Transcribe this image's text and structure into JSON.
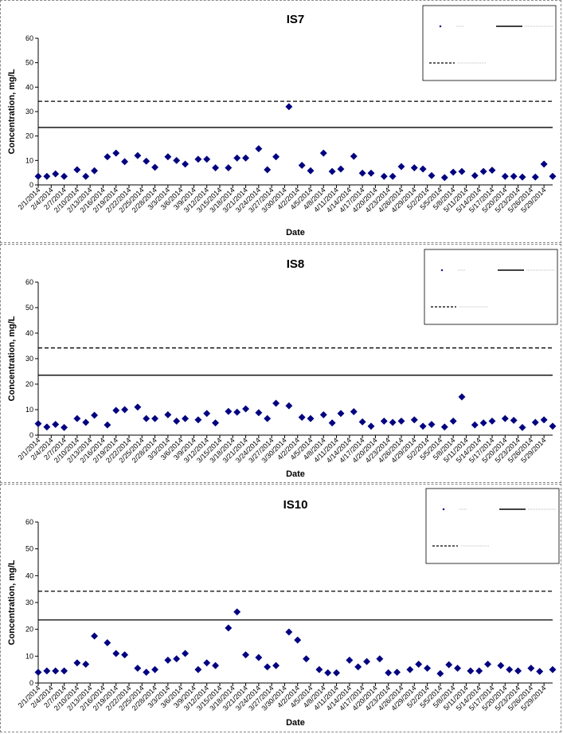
{
  "chart_data": [
    {
      "type": "scatter",
      "title": "IS7",
      "xlabel": "Date",
      "ylabel": "Concentration, mg/L",
      "ylim": [
        0,
        60
      ],
      "yticks": [
        0,
        10,
        20,
        30,
        40,
        50,
        60
      ],
      "xlim": [
        "2014-02-01",
        "2014-05-31"
      ],
      "xtick_labels": [
        "2/1/2014",
        "2/4/2014",
        "2/7/2014",
        "2/10/2014",
        "2/13/2014",
        "2/16/2014",
        "2/19/2014",
        "2/22/2014",
        "2/25/2014",
        "2/28/2014",
        "3/3/2014",
        "3/6/2014",
        "3/9/2014",
        "3/12/2014",
        "3/15/2014",
        "3/18/2014",
        "3/21/2014",
        "3/24/2014",
        "3/27/2014",
        "3/30/2014",
        "4/2/2014",
        "4/5/2014",
        "4/8/2014",
        "4/11/2014",
        "4/14/2014",
        "4/17/2014",
        "4/20/2014",
        "4/23/2014",
        "4/26/2014",
        "4/29/2014",
        "5/2/2014",
        "5/5/2014",
        "5/8/2014",
        "5/11/2014",
        "5/14/2014",
        "5/17/2014",
        "5/20/2014",
        "5/23/2014",
        "5/26/2014",
        "5/29/2014"
      ],
      "hlines": [
        {
          "y": 34.2,
          "style": "dashed"
        },
        {
          "y": 23.5,
          "style": "solid"
        }
      ],
      "legend_position": "top-right",
      "marker_color": "#000080",
      "points": [
        [
          "2014-02-01",
          3.5
        ],
        [
          "2014-02-03",
          3.5
        ],
        [
          "2014-02-05",
          4.5
        ],
        [
          "2014-02-07",
          3.5
        ],
        [
          "2014-02-10",
          6.2
        ],
        [
          "2014-02-12",
          3.5
        ],
        [
          "2014-02-14",
          5.8
        ],
        [
          "2014-02-17",
          11.5
        ],
        [
          "2014-02-19",
          13
        ],
        [
          "2014-02-21",
          9.5
        ],
        [
          "2014-02-24",
          12
        ],
        [
          "2014-02-26",
          9.7
        ],
        [
          "2014-02-28",
          7.2
        ],
        [
          "2014-03-03",
          11.5
        ],
        [
          "2014-03-05",
          10
        ],
        [
          "2014-03-07",
          8.5
        ],
        [
          "2014-03-10",
          10.5
        ],
        [
          "2014-03-12",
          10.5
        ],
        [
          "2014-03-14",
          7
        ],
        [
          "2014-03-17",
          7
        ],
        [
          "2014-03-19",
          11
        ],
        [
          "2014-03-21",
          11
        ],
        [
          "2014-03-24",
          14.8
        ],
        [
          "2014-03-26",
          6.2
        ],
        [
          "2014-03-28",
          11.5
        ],
        [
          "2014-03-31",
          32
        ],
        [
          "2014-04-03",
          8
        ],
        [
          "2014-04-05",
          5.8
        ],
        [
          "2014-04-08",
          13
        ],
        [
          "2014-04-10",
          5.5
        ],
        [
          "2014-04-12",
          6.5
        ],
        [
          "2014-04-15",
          11.7
        ],
        [
          "2014-04-17",
          4.8
        ],
        [
          "2014-04-19",
          4.8
        ],
        [
          "2014-04-22",
          3.5
        ],
        [
          "2014-04-24",
          3.5
        ],
        [
          "2014-04-26",
          7.5
        ],
        [
          "2014-04-29",
          7
        ],
        [
          "2014-05-01",
          6.5
        ],
        [
          "2014-05-03",
          3.8
        ],
        [
          "2014-05-06",
          3
        ],
        [
          "2014-05-08",
          5.2
        ],
        [
          "2014-05-10",
          5.5
        ],
        [
          "2014-05-13",
          3.8
        ],
        [
          "2014-05-15",
          5.5
        ],
        [
          "2014-05-17",
          6
        ],
        [
          "2014-05-20",
          3.5
        ],
        [
          "2014-05-22",
          3.5
        ],
        [
          "2014-05-24",
          3.2
        ],
        [
          "2014-05-27",
          3.2
        ],
        [
          "2014-05-29",
          8.5
        ],
        [
          "2014-05-31",
          3.5
        ]
      ]
    },
    {
      "type": "scatter",
      "title": "IS8",
      "xlabel": "Date",
      "ylabel": "Concentration, mg/L",
      "ylim": [
        0,
        60
      ],
      "yticks": [
        0,
        10,
        20,
        30,
        40,
        50,
        60
      ],
      "xlim": [
        "2014-02-01",
        "2014-05-31"
      ],
      "xtick_labels": [
        "2/1/2014",
        "2/4/2014",
        "2/7/2014",
        "2/10/2014",
        "2/13/2014",
        "2/16/2014",
        "2/19/2014",
        "2/22/2014",
        "2/25/2014",
        "2/28/2014",
        "3/3/2014",
        "3/6/2014",
        "3/9/2014",
        "3/12/2014",
        "3/15/2014",
        "3/18/2014",
        "3/21/2014",
        "3/24/2014",
        "3/27/2014",
        "3/30/2014",
        "4/2/2014",
        "4/5/2014",
        "4/8/2014",
        "4/11/2014",
        "4/14/2014",
        "4/17/2014",
        "4/20/2014",
        "4/23/2014",
        "4/26/2014",
        "4/29/2014",
        "5/2/2014",
        "5/5/2014",
        "5/8/2014",
        "5/11/2014",
        "5/14/2014",
        "5/17/2014",
        "5/20/2014",
        "5/23/2014",
        "5/26/2014",
        "5/29/2014"
      ],
      "hlines": [
        {
          "y": 34.2,
          "style": "dashed"
        },
        {
          "y": 23.5,
          "style": "solid"
        }
      ],
      "legend_position": "top-right",
      "marker_color": "#000080",
      "points": [
        [
          "2014-02-01",
          4.5
        ],
        [
          "2014-02-03",
          3.2
        ],
        [
          "2014-02-05",
          4.2
        ],
        [
          "2014-02-07",
          3
        ],
        [
          "2014-02-10",
          6.5
        ],
        [
          "2014-02-12",
          5
        ],
        [
          "2014-02-14",
          7.8
        ],
        [
          "2014-02-17",
          4
        ],
        [
          "2014-02-19",
          9.7
        ],
        [
          "2014-02-21",
          10
        ],
        [
          "2014-02-24",
          11
        ],
        [
          "2014-02-26",
          6.5
        ],
        [
          "2014-02-28",
          6.5
        ],
        [
          "2014-03-03",
          8
        ],
        [
          "2014-03-05",
          5.5
        ],
        [
          "2014-03-07",
          6.5
        ],
        [
          "2014-03-10",
          6
        ],
        [
          "2014-03-12",
          8.5
        ],
        [
          "2014-03-14",
          4.8
        ],
        [
          "2014-03-17",
          9.3
        ],
        [
          "2014-03-19",
          9
        ],
        [
          "2014-03-21",
          10.3
        ],
        [
          "2014-03-24",
          8.8
        ],
        [
          "2014-03-26",
          6.5
        ],
        [
          "2014-03-28",
          12.5
        ],
        [
          "2014-03-31",
          11.5
        ],
        [
          "2014-04-03",
          7
        ],
        [
          "2014-04-05",
          6.5
        ],
        [
          "2014-04-08",
          8
        ],
        [
          "2014-04-10",
          4.8
        ],
        [
          "2014-04-12",
          8.5
        ],
        [
          "2014-04-15",
          9.2
        ],
        [
          "2014-04-17",
          5.2
        ],
        [
          "2014-04-19",
          3.5
        ],
        [
          "2014-04-22",
          5.5
        ],
        [
          "2014-04-24",
          5
        ],
        [
          "2014-04-26",
          5.5
        ],
        [
          "2014-04-29",
          6
        ],
        [
          "2014-05-01",
          3.5
        ],
        [
          "2014-05-03",
          4.2
        ],
        [
          "2014-05-06",
          3.2
        ],
        [
          "2014-05-08",
          5.5
        ],
        [
          "2014-05-10",
          15
        ],
        [
          "2014-05-13",
          4
        ],
        [
          "2014-05-15",
          4.8
        ],
        [
          "2014-05-17",
          5.5
        ],
        [
          "2014-05-20",
          6.5
        ],
        [
          "2014-05-22",
          5.8
        ],
        [
          "2014-05-24",
          3
        ],
        [
          "2014-05-27",
          5
        ],
        [
          "2014-05-29",
          6
        ],
        [
          "2014-05-31",
          3.5
        ]
      ]
    },
    {
      "type": "scatter",
      "title": "IS10",
      "xlabel": "Date",
      "ylabel": "Concentration, mg/L",
      "ylim": [
        0,
        60
      ],
      "yticks": [
        0,
        10,
        20,
        30,
        40,
        50,
        60
      ],
      "xlim": [
        "2014-02-01",
        "2014-05-31"
      ],
      "xtick_labels": [
        "2/1/2014",
        "2/4/2014",
        "2/7/2014",
        "2/10/2014",
        "2/13/2014",
        "2/16/2014",
        "2/19/2014",
        "2/22/2014",
        "2/25/2014",
        "2/28/2014",
        "3/3/2014",
        "3/6/2014",
        "3/9/2014",
        "3/12/2014",
        "3/15/2014",
        "3/18/2014",
        "3/21/2014",
        "3/24/2014",
        "3/27/2014",
        "3/30/2014",
        "4/2/2014",
        "4/5/2014",
        "4/8/2014",
        "4/11/2014",
        "4/14/2014",
        "4/17/2014",
        "4/20/2014",
        "4/23/2014",
        "4/26/2014",
        "4/29/2014",
        "5/2/2014",
        "5/5/2014",
        "5/8/2014",
        "5/11/2014",
        "5/14/2014",
        "5/17/2014",
        "5/20/2014",
        "5/23/2014",
        "5/26/2014",
        "5/29/2014"
      ],
      "hlines": [
        {
          "y": 34.2,
          "style": "dashed"
        },
        {
          "y": 23.5,
          "style": "solid"
        }
      ],
      "legend_position": "top-right",
      "marker_color": "#000080",
      "points": [
        [
          "2014-02-01",
          4
        ],
        [
          "2014-02-03",
          4.5
        ],
        [
          "2014-02-05",
          4.5
        ],
        [
          "2014-02-07",
          4.5
        ],
        [
          "2014-02-10",
          7.5
        ],
        [
          "2014-02-12",
          7
        ],
        [
          "2014-02-14",
          17.5
        ],
        [
          "2014-02-17",
          15
        ],
        [
          "2014-02-19",
          11
        ],
        [
          "2014-02-21",
          10.5
        ],
        [
          "2014-02-24",
          5.5
        ],
        [
          "2014-02-26",
          4
        ],
        [
          "2014-02-28",
          5
        ],
        [
          "2014-03-03",
          8.5
        ],
        [
          "2014-03-05",
          9
        ],
        [
          "2014-03-07",
          11
        ],
        [
          "2014-03-10",
          5
        ],
        [
          "2014-03-12",
          7.5
        ],
        [
          "2014-03-14",
          6.5
        ],
        [
          "2014-03-17",
          20.5
        ],
        [
          "2014-03-19",
          26.5
        ],
        [
          "2014-03-21",
          10.5
        ],
        [
          "2014-03-24",
          9.5
        ],
        [
          "2014-03-26",
          6
        ],
        [
          "2014-03-28",
          6.5
        ],
        [
          "2014-03-31",
          19
        ],
        [
          "2014-04-02",
          16
        ],
        [
          "2014-04-04",
          9
        ],
        [
          "2014-04-07",
          5
        ],
        [
          "2014-04-09",
          3.8
        ],
        [
          "2014-04-11",
          3.8
        ],
        [
          "2014-04-14",
          8.5
        ],
        [
          "2014-04-16",
          6
        ],
        [
          "2014-04-18",
          8
        ],
        [
          "2014-04-21",
          9
        ],
        [
          "2014-04-23",
          3.8
        ],
        [
          "2014-04-25",
          4
        ],
        [
          "2014-04-28",
          5
        ],
        [
          "2014-04-30",
          7
        ],
        [
          "2014-05-02",
          5.5
        ],
        [
          "2014-05-05",
          3.5
        ],
        [
          "2014-05-07",
          6.8
        ],
        [
          "2014-05-09",
          5.5
        ],
        [
          "2014-05-12",
          4.5
        ],
        [
          "2014-05-14",
          4.5
        ],
        [
          "2014-05-16",
          7
        ],
        [
          "2014-05-19",
          6.5
        ],
        [
          "2014-05-21",
          5
        ],
        [
          "2014-05-23",
          4.5
        ],
        [
          "2014-05-26",
          5.5
        ],
        [
          "2014-05-28",
          4.3
        ],
        [
          "2014-05-31",
          5
        ]
      ]
    }
  ]
}
